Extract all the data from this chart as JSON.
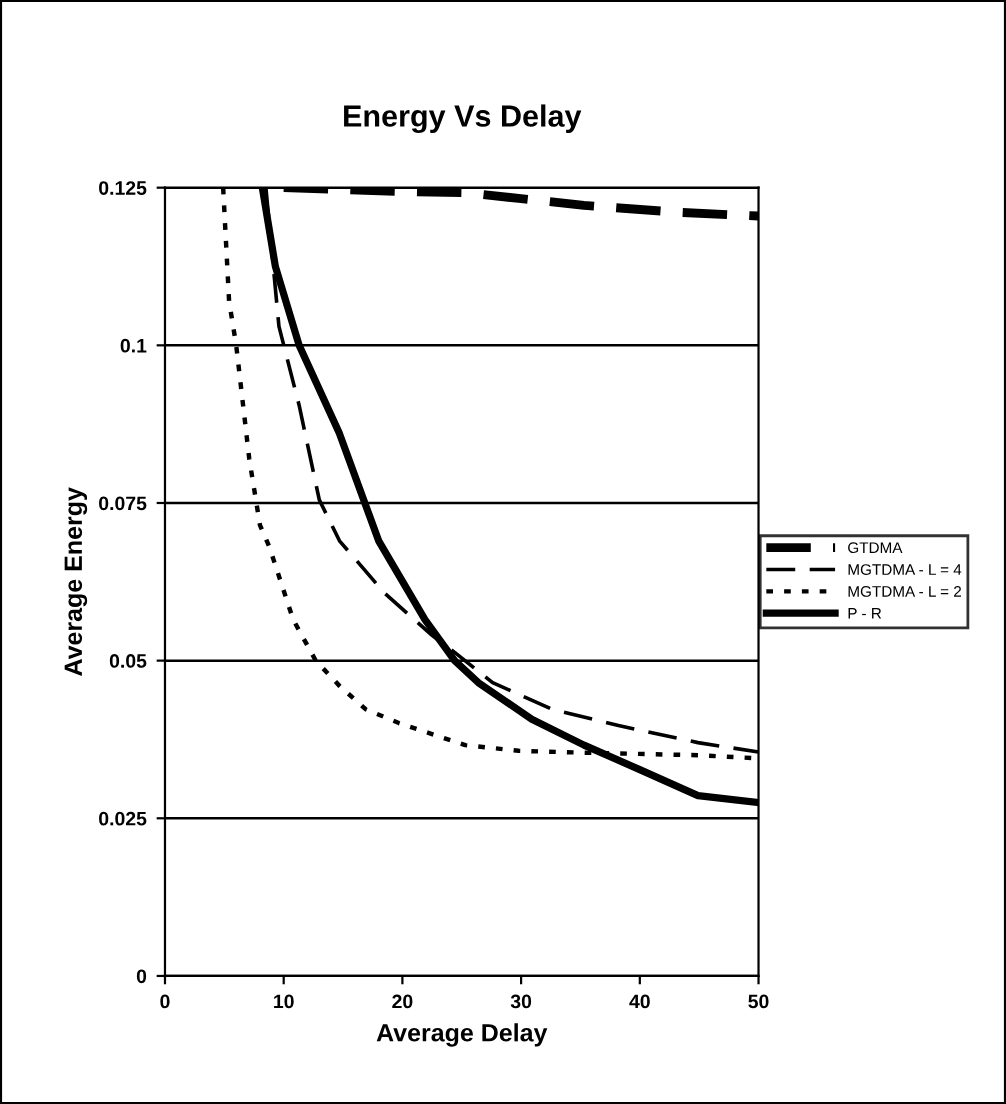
{
  "chart_data": {
    "type": "line",
    "title": "Energy Vs Delay",
    "xlabel": "Average Delay",
    "ylabel": "Average Energy",
    "xlim": [
      0,
      50
    ],
    "xticks": [
      0,
      10,
      20,
      30,
      40,
      50
    ],
    "ylim": [
      0,
      0.125
    ],
    "yticks": [
      0,
      0.025,
      0.05,
      0.075,
      0.1,
      0.125
    ],
    "grid": "y",
    "legend": "right",
    "marker": "none",
    "series": [
      {
        "name": "GTDMA",
        "color": "#000000",
        "line_style": "dashed",
        "x": [
          10,
          19.7,
          25.3,
          29.8,
          35.3,
          43.2,
          50
        ],
        "values": [
          0.125,
          0.1244,
          0.1242,
          0.1233,
          0.1222,
          0.1211,
          0.1205
        ]
      },
      {
        "name": "MGTDMA - L = 4",
        "color": "#000000",
        "line_style": "dashed",
        "x": [
          8.5,
          9.6,
          11.3,
          13,
          14.7,
          18.5,
          22.5,
          24.4,
          27.6,
          32.6,
          38.2,
          44.9,
          50
        ],
        "values": [
          0.125,
          0.103,
          0.0905,
          0.0755,
          0.069,
          0.0607,
          0.054,
          0.0513,
          0.0465,
          0.0423,
          0.0397,
          0.037,
          0.0355
        ]
      },
      {
        "name": "MGTDMA - L = 2",
        "color": "#000000",
        "line_style": "dotted",
        "x": [
          4.9,
          5.4,
          6,
          7.1,
          8,
          8.8,
          10.8,
          12.7,
          14.7,
          16.9,
          19.7,
          25.3,
          29.8,
          35.3,
          44.9,
          50
        ],
        "values": [
          0.125,
          0.107,
          0.1,
          0.082,
          0.0715,
          0.068,
          0.0565,
          0.05,
          0.046,
          0.0423,
          0.0401,
          0.0366,
          0.0357,
          0.0354,
          0.035,
          0.0345
        ]
      },
      {
        "name": "P - R",
        "color": "#000000",
        "line_style": "solid",
        "x": [
          8.2,
          9.3,
          11.3,
          14.7,
          18,
          21.9,
          24.4,
          26.4,
          30.9,
          35.3,
          39.9,
          44.9,
          50
        ],
        "values": [
          0.125,
          0.1125,
          0.1,
          0.086,
          0.069,
          0.0565,
          0.05,
          0.0465,
          0.0407,
          0.0366,
          0.0328,
          0.0286,
          0.0275
        ]
      }
    ]
  }
}
